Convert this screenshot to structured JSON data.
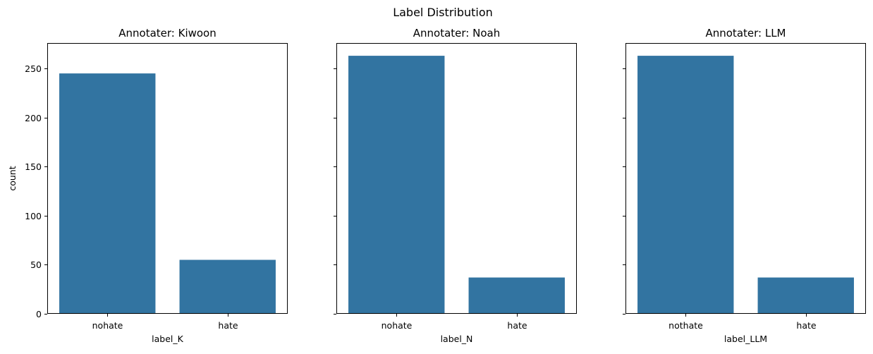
{
  "figure": {
    "suptitle": "Label Distribution"
  },
  "chart_data": [
    {
      "type": "bar",
      "title": "Annotater: Kiwoon",
      "xlabel": "label_K",
      "ylabel": "count",
      "categories": [
        "nohate",
        "hate"
      ],
      "values": [
        245,
        55
      ],
      "ylim": [
        0,
        276
      ],
      "yticks": [
        0,
        50,
        100,
        150,
        200,
        250
      ],
      "ytick_labels_shown": true,
      "grid": false,
      "color": "#3274a1"
    },
    {
      "type": "bar",
      "title": "Annotater: Noah",
      "xlabel": "label_N",
      "ylabel": "",
      "categories": [
        "nohate",
        "hate"
      ],
      "values": [
        263,
        37
      ],
      "ylim": [
        0,
        276
      ],
      "yticks": [
        0,
        50,
        100,
        150,
        200,
        250
      ],
      "ytick_labels_shown": false,
      "grid": false,
      "color": "#3274a1"
    },
    {
      "type": "bar",
      "title": "Annotater: LLM",
      "xlabel": "label_LLM",
      "ylabel": "",
      "categories": [
        "nothate",
        "hate"
      ],
      "values": [
        263,
        37
      ],
      "ylim": [
        0,
        276
      ],
      "yticks": [
        0,
        50,
        100,
        150,
        200,
        250
      ],
      "ytick_labels_shown": false,
      "grid": false,
      "color": "#3274a1"
    }
  ]
}
